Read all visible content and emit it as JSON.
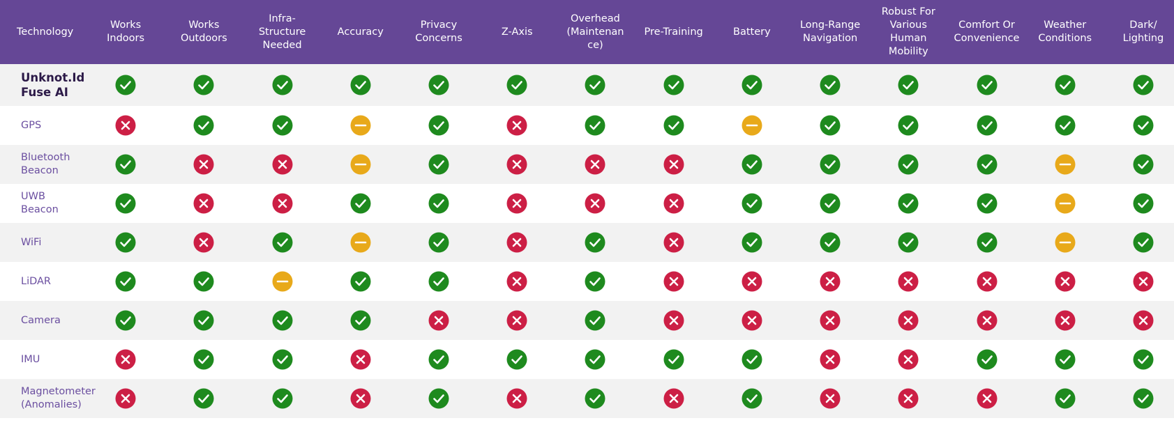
{
  "table": {
    "headers": [
      "Technology",
      "Works\nIndoors",
      "Works\nOutdoors",
      "Infra-\nStructure\nNeeded",
      "Accuracy",
      "Privacy\nConcerns",
      "Z-Axis",
      "Overhead\n(Maintenan\nce)",
      "Pre-Training",
      "Battery",
      "Long-Range\nNavigation",
      "Robust For\nVarious\nHuman\nMobility",
      "Comfort Or\nConvenience",
      "Weather\nConditions",
      "Dark/\nLighting"
    ],
    "rows": [
      {
        "name": "Unknot.Id Fuse AI",
        "featured": true,
        "values": [
          "yes",
          "yes",
          "yes",
          "yes",
          "yes",
          "yes",
          "yes",
          "yes",
          "yes",
          "yes",
          "yes",
          "yes",
          "yes",
          "yes"
        ]
      },
      {
        "name": "GPS",
        "featured": false,
        "values": [
          "no",
          "yes",
          "yes",
          "partial",
          "yes",
          "no",
          "yes",
          "yes",
          "partial",
          "yes",
          "yes",
          "yes",
          "yes",
          "yes"
        ]
      },
      {
        "name": "Bluetooth Beacon",
        "featured": false,
        "values": [
          "yes",
          "no",
          "no",
          "partial",
          "yes",
          "no",
          "no",
          "no",
          "yes",
          "yes",
          "yes",
          "yes",
          "partial",
          "yes"
        ]
      },
      {
        "name": "UWB Beacon",
        "featured": false,
        "values": [
          "yes",
          "no",
          "no",
          "yes",
          "yes",
          "no",
          "no",
          "no",
          "yes",
          "yes",
          "yes",
          "yes",
          "partial",
          "yes"
        ]
      },
      {
        "name": "WiFi",
        "featured": false,
        "values": [
          "yes",
          "no",
          "yes",
          "partial",
          "yes",
          "no",
          "yes",
          "no",
          "yes",
          "yes",
          "yes",
          "yes",
          "partial",
          "yes"
        ]
      },
      {
        "name": "LiDAR",
        "featured": false,
        "values": [
          "yes",
          "yes",
          "partial",
          "yes",
          "yes",
          "no",
          "yes",
          "no",
          "no",
          "no",
          "no",
          "no",
          "no",
          "no"
        ]
      },
      {
        "name": "Camera",
        "featured": false,
        "values": [
          "yes",
          "yes",
          "yes",
          "yes",
          "no",
          "no",
          "yes",
          "no",
          "no",
          "no",
          "no",
          "no",
          "no",
          "no"
        ]
      },
      {
        "name": "IMU",
        "featured": false,
        "values": [
          "no",
          "yes",
          "yes",
          "no",
          "yes",
          "yes",
          "yes",
          "yes",
          "yes",
          "no",
          "no",
          "yes",
          "yes",
          "yes"
        ]
      },
      {
        "name": "Magnetometer (Anomalies)",
        "featured": false,
        "values": [
          "no",
          "yes",
          "yes",
          "no",
          "yes",
          "no",
          "yes",
          "no",
          "yes",
          "no",
          "no",
          "no",
          "yes",
          "yes"
        ]
      }
    ]
  },
  "icons": {
    "yes": {
      "name": "check-circle-icon",
      "color": "#1e8a1e"
    },
    "no": {
      "name": "x-circle-icon",
      "color": "#cc1f45"
    },
    "partial": {
      "name": "minus-circle-icon",
      "color": "#e8a91a"
    }
  },
  "colors": {
    "header_bg": "#654796",
    "header_text": "#ffffff",
    "tech_text": "#6b4fa0",
    "featured_text": "#2c1a48",
    "stripe": "#f2f2f2"
  }
}
